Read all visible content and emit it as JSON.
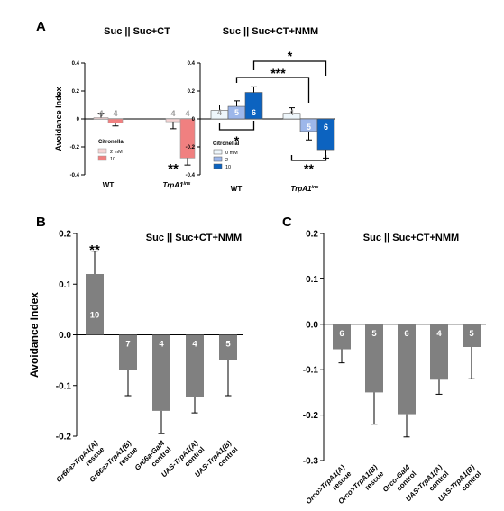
{
  "chart_data": [
    {
      "panel": "A",
      "type": "bar",
      "title": "Suc || Suc+CT",
      "ylabel": "Avoidance Index",
      "ylim": [
        -0.4,
        0.4
      ],
      "yticks": [
        "0.4",
        "0.2",
        "0",
        "-0.2",
        "-0.4"
      ],
      "groups": [
        "WT",
        "TrpA1"
      ],
      "group_superscripts": [
        "",
        "ins"
      ],
      "legend_title": "Citronellal",
      "legend": [
        {
          "label": "2 mM",
          "color": "#f6d4d4"
        },
        {
          "label": "10",
          "color": "#f08080"
        }
      ],
      "series": [
        {
          "name": "2 mM",
          "color": "#f6d4d4",
          "values": [
            0.01,
            -0.02
          ],
          "errors": [
            0.03,
            0.05
          ],
          "n": [
            "4",
            "4"
          ]
        },
        {
          "name": "10",
          "color": "#f08080",
          "values": [
            -0.03,
            -0.28
          ],
          "errors": [
            0.02,
            0.05
          ],
          "n": [
            "4",
            "4"
          ]
        }
      ],
      "annotations": [
        "**"
      ]
    },
    {
      "panel": "A",
      "type": "bar",
      "title": "Suc || Suc+CT+NMM",
      "ylim": [
        -0.4,
        0.4
      ],
      "yticks": [
        "0.4",
        "0.2",
        "0",
        "-0.2",
        "-0.4"
      ],
      "groups": [
        "WT",
        "TrpA1"
      ],
      "group_superscripts": [
        "",
        "ins"
      ],
      "legend_title": "Citronellal",
      "legend": [
        {
          "label": "0 mM",
          "color": "#eef6fb"
        },
        {
          "label": "2",
          "color": "#9db7ea"
        },
        {
          "label": "10",
          "color": "#0c63c0"
        }
      ],
      "series": [
        {
          "name": "0 mM",
          "color": "#eef6fb",
          "values": [
            0.06,
            0.04
          ],
          "errors": [
            0.04,
            0.04
          ],
          "n": [
            "4",
            "4"
          ]
        },
        {
          "name": "2",
          "color": "#9db7ea",
          "values": [
            0.09,
            -0.09
          ],
          "errors": [
            0.04,
            0.06
          ],
          "n": [
            "5",
            "5"
          ]
        },
        {
          "name": "10",
          "color": "#0c63c0",
          "values": [
            0.19,
            -0.22
          ],
          "errors": [
            0.04,
            0.06
          ],
          "n": [
            "6",
            "6"
          ]
        }
      ],
      "significance": [
        "*",
        "***",
        "*",
        "**"
      ]
    },
    {
      "panel": "B",
      "type": "bar",
      "title": "Suc || Suc+CT+NMM",
      "ylabel": "Avoidance Index",
      "ylim": [
        -0.2,
        0.2
      ],
      "yticks": [
        "0.2",
        "0.1",
        "0.0",
        "-0.1",
        "-0.2"
      ],
      "bar_color": "#808080",
      "categories": [
        {
          "genotype": "Gr66a>TrpA1(A)",
          "role": "rescue"
        },
        {
          "genotype": "Gr66a>TrpA1(B)",
          "role": "rescue"
        },
        {
          "genotype": "Gr66a-Gal4",
          "role": "control"
        },
        {
          "genotype": "UAS-TrpA1(A)",
          "role": "control"
        },
        {
          "genotype": "UAS-TrpA1(B)",
          "role": "control"
        }
      ],
      "values": [
        0.12,
        -0.07,
        -0.15,
        -0.122,
        -0.05
      ],
      "errors": [
        0.045,
        0.05,
        0.045,
        0.032,
        0.07
      ],
      "n": [
        "10",
        "7",
        "4",
        "4",
        "5"
      ],
      "annotations": [
        "**"
      ]
    },
    {
      "panel": "C",
      "type": "bar",
      "title": "Suc || Suc+CT+NMM",
      "ylim": [
        -0.3,
        0.2
      ],
      "yticks": [
        "0.2",
        "0.1",
        "0.0",
        "-0.1",
        "-0.2",
        "-0.3"
      ],
      "bar_color": "#808080",
      "categories": [
        {
          "genotype": "Orco>TrpA1(A)",
          "role": "rescue"
        },
        {
          "genotype": "Orco>TrpA1(B)",
          "role": "rescue"
        },
        {
          "genotype": "Orco-Gal4",
          "role": "control"
        },
        {
          "genotype": "UAS-TrpA1(A)",
          "role": "control"
        },
        {
          "genotype": "UAS-TrpA1(B)",
          "role": "control"
        }
      ],
      "values": [
        -0.055,
        -0.15,
        -0.198,
        -0.122,
        -0.05
      ],
      "errors": [
        0.03,
        0.07,
        0.05,
        0.032,
        0.07
      ],
      "n": [
        "6",
        "5",
        "6",
        "4",
        "5"
      ]
    }
  ]
}
